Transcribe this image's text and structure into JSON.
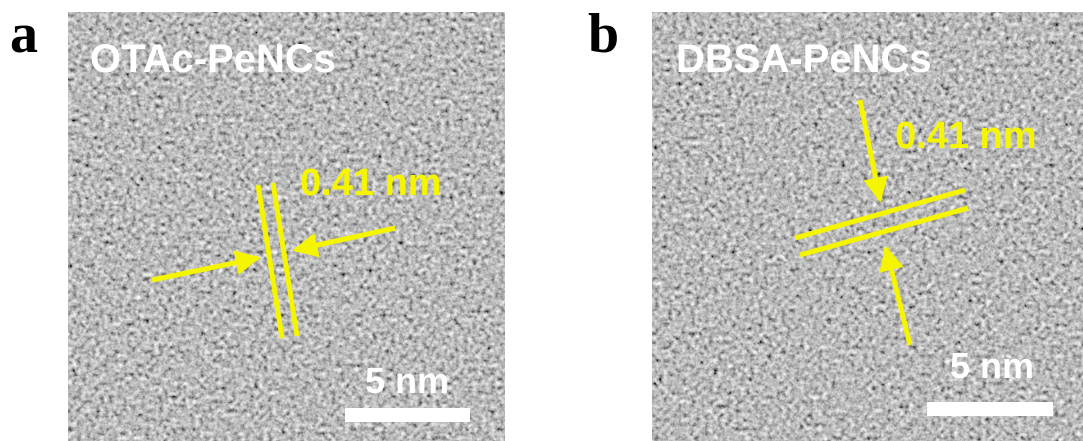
{
  "panels": [
    {
      "label": "a",
      "title": "OTAc-PeNCs",
      "spacing": "0.41 nm",
      "scale_bar": "5 nm"
    },
    {
      "label": "b",
      "title": "DBSA-PeNCs",
      "spacing": "0.41 nm",
      "scale_bar": "5 nm"
    }
  ]
}
